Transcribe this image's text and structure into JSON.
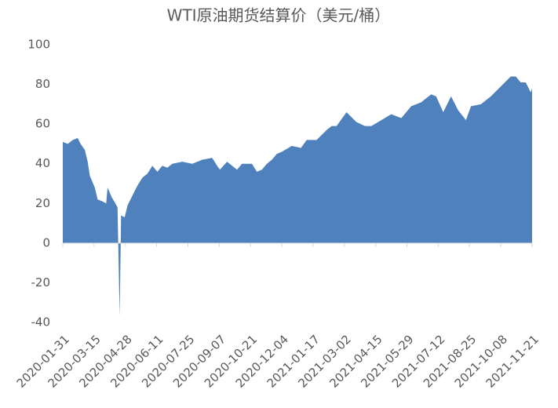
{
  "chart_data": {
    "type": "area",
    "title": "WTI原油期货结算价（美元/桶）",
    "color": "#4f81bd",
    "x": [
      "2020-01-31",
      "2020-02-07",
      "2020-02-14",
      "2020-02-21",
      "2020-02-25",
      "2020-03-02",
      "2020-03-06",
      "2020-03-09",
      "2020-03-16",
      "2020-03-20",
      "2020-03-27",
      "2020-04-01",
      "2020-04-03",
      "2020-04-09",
      "2020-04-14",
      "2020-04-17",
      "2020-04-20",
      "2020-04-22",
      "2020-04-27",
      "2020-05-01",
      "2020-05-08",
      "2020-05-15",
      "2020-05-22",
      "2020-05-29",
      "2020-06-05",
      "2020-06-12",
      "2020-06-19",
      "2020-06-26",
      "2020-07-03",
      "2020-07-17",
      "2020-07-31",
      "2020-08-14",
      "2020-08-28",
      "2020-09-04",
      "2020-09-08",
      "2020-09-18",
      "2020-10-02",
      "2020-10-09",
      "2020-10-23",
      "2020-10-30",
      "2020-11-06",
      "2020-11-13",
      "2020-11-20",
      "2020-11-27",
      "2020-12-04",
      "2020-12-18",
      "2020-12-31",
      "2021-01-08",
      "2021-01-22",
      "2021-02-05",
      "2021-02-12",
      "2021-02-19",
      "2021-03-05",
      "2021-03-19",
      "2021-03-31",
      "2021-04-09",
      "2021-04-23",
      "2021-05-07",
      "2021-05-21",
      "2021-06-04",
      "2021-06-18",
      "2021-07-02",
      "2021-07-09",
      "2021-07-19",
      "2021-07-30",
      "2021-08-09",
      "2021-08-20",
      "2021-08-27",
      "2021-09-10",
      "2021-09-24",
      "2021-10-08",
      "2021-10-22",
      "2021-10-29",
      "2021-11-05",
      "2021-11-12",
      "2021-11-19",
      "2021-11-21"
    ],
    "values": [
      51,
      50,
      52,
      53,
      50,
      47,
      41,
      34,
      28,
      22,
      21,
      20,
      28,
      23,
      20,
      18,
      -37,
      14,
      13,
      19,
      24,
      29,
      33,
      35,
      39,
      36,
      39,
      38,
      40,
      41,
      40,
      42,
      43,
      39,
      37,
      41,
      37,
      40,
      40,
      36,
      37,
      40,
      42,
      45,
      46,
      49,
      48,
      52,
      52,
      57,
      59,
      59,
      66,
      61,
      59,
      59,
      62,
      65,
      63,
      69,
      71,
      75,
      74,
      66,
      74,
      67,
      62,
      69,
      70,
      74,
      79,
      84,
      84,
      81,
      81,
      76,
      78
    ],
    "xlim": [
      "2020-01-31",
      "2021-11-21"
    ],
    "xticks": [
      "2020-01-31",
      "2020-03-15",
      "2020-04-28",
      "2020-06-11",
      "2020-07-25",
      "2020-09-07",
      "2020-10-21",
      "2020-12-04",
      "2021-01-17",
      "2021-03-02",
      "2021-04-15",
      "2021-05-29",
      "2021-07-12",
      "2021-08-25",
      "2021-10-08",
      "2021-11-21"
    ],
    "ylim": [
      -40,
      100
    ],
    "yticks": [
      -40,
      -20,
      0,
      20,
      40,
      60,
      80,
      100
    ]
  }
}
